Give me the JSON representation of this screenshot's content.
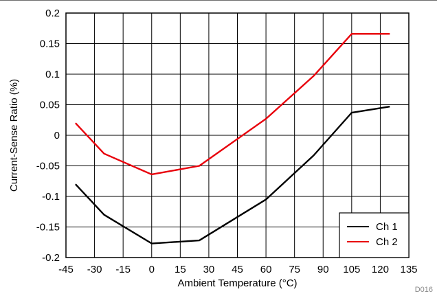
{
  "chart_data": {
    "type": "line",
    "title": "",
    "xlabel": "Ambient Temperature (°C)",
    "ylabel": "Current-Sense Ratio (%)",
    "xlim": [
      -45,
      135
    ],
    "ylim": [
      -0.2,
      0.2
    ],
    "x_ticks": [
      "-45",
      "-30",
      "-15",
      "0",
      "15",
      "30",
      "45",
      "60",
      "75",
      "90",
      "105",
      "120",
      "135"
    ],
    "y_ticks": [
      "0.2",
      "0.15",
      "0.1",
      "0.05",
      "0",
      "-0.05",
      "-0.1",
      "-0.15",
      "-0.2"
    ],
    "grid": true,
    "legend_position": "bottom-right",
    "series": [
      {
        "name": "Ch 1",
        "color": "#000000",
        "x": [
          -40,
          -25,
          0,
          25,
          60,
          85,
          105,
          125
        ],
        "y": [
          -0.08,
          -0.13,
          -0.177,
          -0.172,
          -0.105,
          -0.033,
          0.037,
          0.047
        ]
      },
      {
        "name": "Ch 2",
        "color": "#e8000b",
        "x": [
          -40,
          -25,
          0,
          25,
          60,
          85,
          105,
          125
        ],
        "y": [
          0.02,
          -0.03,
          -0.064,
          -0.05,
          0.027,
          0.097,
          0.166,
          0.166
        ]
      }
    ],
    "figure_id": "D016"
  }
}
